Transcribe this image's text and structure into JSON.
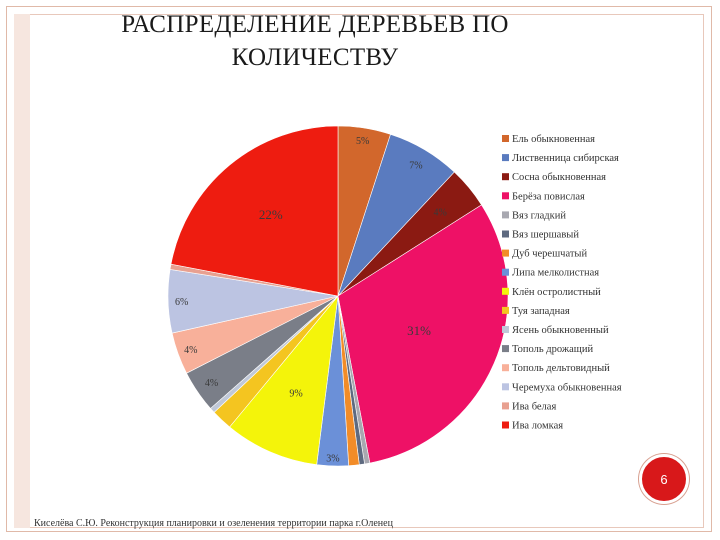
{
  "slide": {
    "title_line1": "РАСПРЕДЕЛЕНИЕ ДЕРЕВЬЕВ ПО",
    "title_line2": "КОЛИЧЕСТВУ",
    "footer": "Киселёва С.Ю. Реконструкция планировки и озеленения территории парка г.Оленец",
    "page_number": "6"
  },
  "chart_data": {
    "type": "pie",
    "title": "",
    "legend_placement": "right",
    "start_angle_deg": 90,
    "direction": "clockwise",
    "slices": [
      {
        "name": "Ель обыкновенная",
        "value": 5,
        "label": "5%",
        "color": "#d2672c"
      },
      {
        "name": "Лиственница сибирская",
        "value": 7,
        "label": "7%",
        "color": "#5a7bbf"
      },
      {
        "name": "Сосна обыкновенная",
        "value": 4,
        "label": "4%",
        "color": "#8b1a12"
      },
      {
        "name": "Берёза повислая",
        "value": 31,
        "label": "31%",
        "color": "#ee1166"
      },
      {
        "name": "Вяз гладкий",
        "value": 0.5,
        "label": "",
        "color": "#a8a8b0"
      },
      {
        "name": "Вяз шершавый",
        "value": 0.5,
        "label": "",
        "color": "#5e6a80"
      },
      {
        "name": "Дуб черешчатый",
        "value": 1,
        "label": "",
        "color": "#f28c28"
      },
      {
        "name": "Липа мелколистная",
        "value": 3,
        "label": "3%",
        "color": "#6b90d8"
      },
      {
        "name": "Клён остролистный",
        "value": 9,
        "label": "9%",
        "color": "#f4f40a"
      },
      {
        "name": "Туя западная",
        "value": 2,
        "label": "",
        "color": "#f4c520"
      },
      {
        "name": "Ясень обыкновенный",
        "value": 0.5,
        "label": "",
        "color": "#c0c8d8"
      },
      {
        "name": "Тополь дрожащий",
        "value": 4,
        "label": "4%",
        "color": "#7a7e88"
      },
      {
        "name": "Тополь дельтовидный",
        "value": 4,
        "label": "4%",
        "color": "#f8b09a"
      },
      {
        "name": "Черемуха обыкновенная",
        "value": 6,
        "label": "6%",
        "color": "#bcc4e2"
      },
      {
        "name": "Ива белая",
        "value": 0.5,
        "label": "",
        "color": "#e8a090"
      },
      {
        "name": "Ива ломкая",
        "value": 22,
        "label": "22%",
        "color": "#ee1c10"
      }
    ]
  }
}
